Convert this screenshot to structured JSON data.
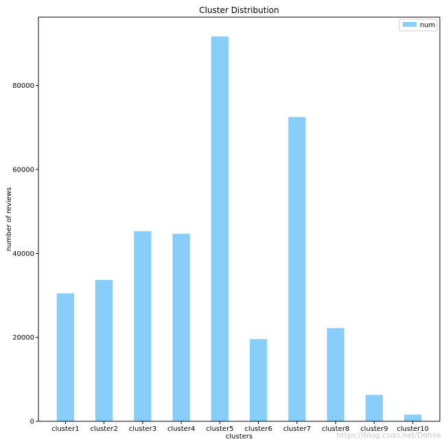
{
  "chart_data": {
    "type": "bar",
    "title": "Cluster Distribution",
    "xlabel": "clusters",
    "ylabel": "number of reviews",
    "categories": [
      "cluster1",
      "cluster2",
      "cluster3",
      "cluster4",
      "cluster5",
      "cluster6",
      "cluster7",
      "cluster8",
      "cluster9",
      "cluster10"
    ],
    "series": [
      {
        "name": "num",
        "values": [
          30500,
          33700,
          45300,
          44700,
          91700,
          19600,
          72500,
          22200,
          6300,
          1600
        ],
        "color": "#87cefa"
      }
    ],
    "ylim": [
      0,
      96300
    ],
    "yticks": [
      0,
      20000,
      40000,
      60000,
      80000
    ],
    "ytick_labels": [
      "0",
      "20000",
      "40000",
      "60000",
      "80000"
    ],
    "grid": false,
    "legend_position": "upper-right"
  },
  "watermark": "https://blog.csdn.net/Dohlie"
}
